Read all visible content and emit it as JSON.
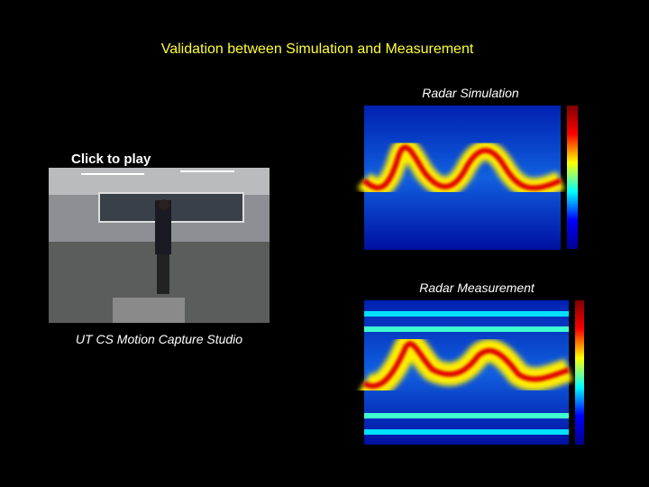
{
  "slide": {
    "title": "Validation between Simulation and Measurement",
    "video": {
      "button": "Click to play",
      "caption": "UT CS Motion Capture Studio"
    },
    "panels": [
      {
        "title": "Radar Simulation"
      },
      {
        "title": "Radar Measurement"
      }
    ]
  }
}
